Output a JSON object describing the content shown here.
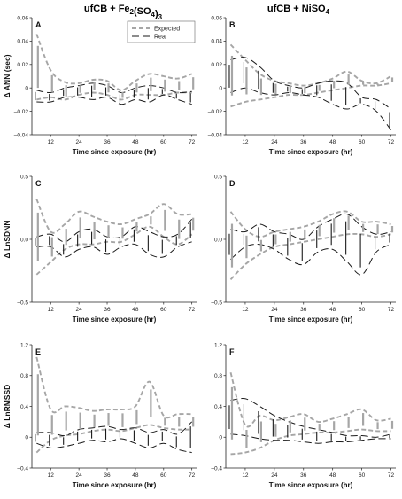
{
  "columns": [
    "ufCB + Fe2(SO4)3",
    "ufCB + NiSO4"
  ],
  "legend": [
    "Expected",
    "Real"
  ],
  "colors": {
    "expected": "#a6a6a6",
    "real": "#1a1a1a",
    "axis": "#222222"
  },
  "chart_data": [
    {
      "type": "line",
      "panel": "A",
      "ylabel": "Δ ANN (sec)",
      "xlabel": "Time since exposure (hr)",
      "xlim": [
        4,
        74
      ],
      "xticks": [
        12,
        24,
        36,
        48,
        60,
        72
      ],
      "ylim": [
        -0.04,
        0.06
      ],
      "yticks": [
        -0.04,
        -0.02,
        0,
        0.02,
        0.04,
        0.06
      ],
      "ytick_labels": [
        "–0.04",
        "–0.02",
        "0",
        "0.02",
        "0.04",
        "0.06"
      ],
      "x": [
        6,
        12,
        18,
        24,
        30,
        36,
        42,
        48,
        54,
        60,
        66,
        72
      ],
      "series": [
        {
          "name": "Expected",
          "role": "upper",
          "values": [
            0.046,
            0.015,
            0.005,
            0.004,
            0.007,
            0.006,
            -0.002,
            0.006,
            0.012,
            0.01,
            0.008,
            0.012
          ]
        },
        {
          "name": "Expected",
          "role": "lower",
          "values": [
            -0.01,
            -0.008,
            -0.01,
            -0.006,
            -0.004,
            -0.006,
            -0.01,
            -0.006,
            -0.006,
            -0.006,
            -0.004,
            -0.004
          ]
        },
        {
          "name": "Real",
          "role": "upper",
          "values": [
            -0.002,
            -0.004,
            0.0,
            0.002,
            0.004,
            0.002,
            -0.004,
            0.0,
            0.002,
            0.0,
            -0.004,
            -0.003
          ]
        },
        {
          "name": "Real",
          "role": "lower",
          "values": [
            -0.012,
            -0.012,
            -0.008,
            -0.008,
            -0.01,
            -0.008,
            -0.014,
            -0.01,
            -0.012,
            -0.006,
            -0.01,
            -0.014
          ]
        }
      ]
    },
    {
      "type": "line",
      "panel": "B",
      "ylabel": "",
      "xlabel": "Time since exposure (hr)",
      "xlim": [
        4,
        74
      ],
      "xticks": [
        12,
        24,
        36,
        48,
        60,
        72
      ],
      "ylim": [
        -0.04,
        0.06
      ],
      "yticks": [
        -0.04,
        -0.02,
        0,
        0.02,
        0.04,
        0.06
      ],
      "ytick_labels": [
        "–0.04",
        "–0.02",
        "0",
        "0.02",
        "0.04",
        "0.06"
      ],
      "x": [
        6,
        12,
        18,
        24,
        30,
        36,
        42,
        48,
        54,
        60,
        66,
        72
      ],
      "series": [
        {
          "name": "Expected",
          "role": "upper",
          "values": [
            0.037,
            0.024,
            0.012,
            0.006,
            0.004,
            0.002,
            0.004,
            0.008,
            0.014,
            0.006,
            0.004,
            0.01
          ]
        },
        {
          "name": "Expected",
          "role": "lower",
          "values": [
            -0.016,
            -0.012,
            -0.01,
            -0.008,
            -0.006,
            -0.006,
            -0.004,
            -0.002,
            0.0,
            0.002,
            0.002,
            0.004
          ]
        },
        {
          "name": "Real",
          "role": "upper",
          "values": [
            0.024,
            0.026,
            0.018,
            0.006,
            0.002,
            0.0,
            0.004,
            0.006,
            0.004,
            -0.008,
            -0.01,
            -0.018
          ]
        },
        {
          "name": "Real",
          "role": "lower",
          "values": [
            -0.004,
            0.0,
            -0.004,
            -0.006,
            -0.004,
            -0.006,
            -0.008,
            -0.014,
            -0.018,
            -0.014,
            -0.02,
            -0.036
          ]
        }
      ]
    },
    {
      "type": "line",
      "panel": "C",
      "ylabel": "Δ LnSDNN",
      "xlabel": "Time since exposure (hr)",
      "xlim": [
        4,
        74
      ],
      "xticks": [
        12,
        24,
        36,
        48,
        60,
        72
      ],
      "ylim": [
        -0.5,
        0.5
      ],
      "yticks": [
        -0.5,
        0,
        0.5
      ],
      "ytick_labels": [
        "–0.5",
        "0.0",
        "0.5"
      ],
      "x": [
        6,
        12,
        18,
        24,
        30,
        36,
        42,
        48,
        54,
        60,
        66,
        72
      ],
      "series": [
        {
          "name": "Expected",
          "role": "upper",
          "values": [
            0.32,
            0.06,
            0.12,
            0.22,
            0.18,
            0.14,
            0.12,
            0.16,
            0.2,
            0.28,
            0.2,
            0.2
          ]
        },
        {
          "name": "Expected",
          "role": "lower",
          "values": [
            -0.28,
            -0.18,
            -0.08,
            -0.04,
            -0.04,
            -0.02,
            -0.02,
            0.04,
            0.1,
            0.02,
            -0.04,
            0.04
          ]
        },
        {
          "name": "Real",
          "role": "upper",
          "values": [
            0.02,
            0.04,
            -0.02,
            0.06,
            0.08,
            0.02,
            0.02,
            0.1,
            0.06,
            0.02,
            0.04,
            0.16
          ]
        },
        {
          "name": "Real",
          "role": "lower",
          "values": [
            -0.06,
            -0.06,
            -0.14,
            -0.08,
            -0.06,
            -0.12,
            -0.06,
            -0.04,
            -0.12,
            -0.14,
            -0.06,
            -0.02
          ]
        }
      ]
    },
    {
      "type": "line",
      "panel": "D",
      "ylabel": "",
      "xlabel": "Time since exposure (hr)",
      "xlim": [
        4,
        74
      ],
      "xticks": [
        12,
        24,
        36,
        48,
        60,
        72
      ],
      "ylim": [
        -0.5,
        0.5
      ],
      "yticks": [
        -0.5,
        0,
        0.5
      ],
      "ytick_labels": [
        "–0.5",
        "0.0",
        "0.5"
      ],
      "x": [
        6,
        12,
        18,
        24,
        30,
        36,
        42,
        48,
        54,
        60,
        66,
        72
      ],
      "series": [
        {
          "name": "Expected",
          "role": "upper",
          "values": [
            0.22,
            0.08,
            0.02,
            0.06,
            0.08,
            0.1,
            0.14,
            0.2,
            0.22,
            0.14,
            0.14,
            0.12
          ]
        },
        {
          "name": "Expected",
          "role": "lower",
          "values": [
            -0.32,
            -0.2,
            -0.12,
            -0.06,
            -0.04,
            -0.02,
            0.0,
            0.02,
            0.04,
            0.04,
            0.02,
            0.04
          ]
        },
        {
          "name": "Real",
          "role": "upper",
          "values": [
            0.08,
            0.06,
            0.12,
            0.06,
            0.04,
            0.0,
            0.1,
            0.16,
            0.2,
            0.1,
            0.04,
            0.06
          ]
        },
        {
          "name": "Real",
          "role": "lower",
          "values": [
            -0.16,
            -0.06,
            -0.04,
            -0.08,
            -0.16,
            -0.2,
            -0.1,
            -0.08,
            -0.18,
            -0.28,
            -0.1,
            -0.04
          ]
        }
      ]
    },
    {
      "type": "line",
      "panel": "E",
      "ylabel": "Δ LnRMSSD",
      "xlabel": "Time since exposure (hr)",
      "xlim": [
        4,
        74
      ],
      "xticks": [
        12,
        24,
        36,
        48,
        60,
        72
      ],
      "ylim": [
        -0.4,
        1.2
      ],
      "yticks": [
        -0.4,
        0,
        0.4,
        0.8,
        1.2
      ],
      "ytick_labels": [
        "–0.4",
        "0",
        "0.4",
        "0.8",
        "1.2"
      ],
      "x": [
        6,
        12,
        18,
        24,
        30,
        36,
        42,
        48,
        54,
        60,
        66,
        72
      ],
      "series": [
        {
          "name": "Expected",
          "role": "upper",
          "values": [
            1.04,
            0.36,
            0.4,
            0.38,
            0.34,
            0.36,
            0.36,
            0.4,
            0.72,
            0.28,
            0.3,
            0.3
          ]
        },
        {
          "name": "Expected",
          "role": "lower",
          "values": [
            -0.2,
            -0.04,
            0.02,
            0.04,
            0.08,
            0.1,
            0.08,
            0.12,
            0.16,
            0.12,
            0.1,
            0.1
          ]
        },
        {
          "name": "Real",
          "role": "upper",
          "values": [
            0.06,
            0.06,
            0.02,
            0.1,
            0.12,
            0.14,
            0.1,
            0.12,
            0.06,
            0.1,
            0.04,
            0.2
          ]
        },
        {
          "name": "Real",
          "role": "lower",
          "values": [
            -0.08,
            -0.14,
            -0.12,
            -0.08,
            -0.04,
            -0.06,
            -0.02,
            -0.08,
            -0.14,
            -0.08,
            -0.16,
            -0.2
          ]
        }
      ]
    },
    {
      "type": "line",
      "panel": "F",
      "ylabel": "",
      "xlabel": "Time since exposure (hr)",
      "xlim": [
        4,
        74
      ],
      "xticks": [
        12,
        24,
        36,
        48,
        60,
        72
      ],
      "ylim": [
        -0.4,
        1.2
      ],
      "yticks": [
        -0.4,
        0,
        0.4,
        0.8,
        1.2
      ],
      "ytick_labels": [
        "–0.4",
        "0",
        "0.4",
        "0.8",
        "1.2"
      ],
      "x": [
        6,
        12,
        18,
        24,
        30,
        36,
        42,
        48,
        54,
        60,
        66,
        72
      ],
      "series": [
        {
          "name": "Expected",
          "role": "upper",
          "values": [
            0.84,
            0.16,
            0.28,
            0.22,
            0.26,
            0.3,
            0.2,
            0.24,
            0.3,
            0.36,
            0.22,
            0.24
          ]
        },
        {
          "name": "Expected",
          "role": "lower",
          "values": [
            -0.22,
            -0.2,
            -0.14,
            -0.04,
            0.02,
            0.04,
            0.06,
            0.06,
            0.08,
            0.1,
            0.08,
            0.08
          ]
        },
        {
          "name": "Real",
          "role": "upper",
          "values": [
            0.48,
            0.5,
            0.4,
            0.28,
            0.2,
            0.14,
            0.1,
            0.06,
            0.02,
            0.02,
            0.0,
            0.04
          ]
        },
        {
          "name": "Real",
          "role": "lower",
          "values": [
            0.04,
            0.02,
            -0.02,
            -0.04,
            -0.04,
            -0.06,
            -0.08,
            -0.06,
            -0.06,
            -0.04,
            -0.02,
            -0.02
          ]
        }
      ]
    }
  ]
}
